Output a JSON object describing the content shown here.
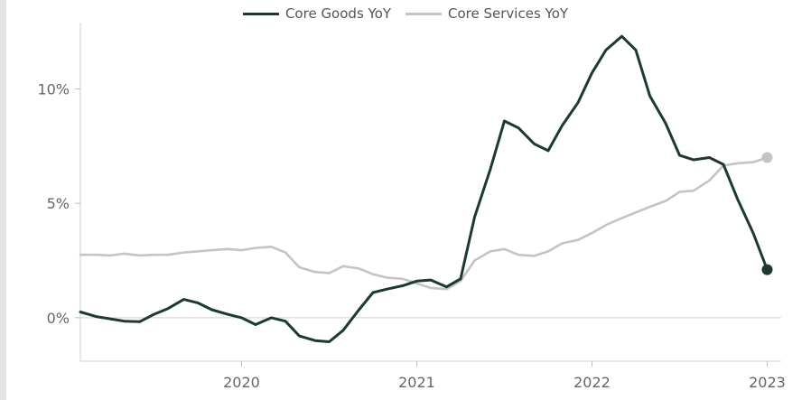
{
  "chart_data": {
    "type": "line",
    "legend": {
      "placement": "top-center"
    },
    "xlim": [
      2019.08,
      2023.08
    ],
    "ylim": [
      -1.9,
      12.9
    ],
    "x_ticks": [
      {
        "value": 2020,
        "label": "2020"
      },
      {
        "value": 2021,
        "label": "2021"
      },
      {
        "value": 2022,
        "label": "2022"
      },
      {
        "value": 2023,
        "label": "2023"
      }
    ],
    "y_ticks": [
      {
        "value": 0,
        "label": "0%"
      },
      {
        "value": 5,
        "label": "5%"
      },
      {
        "value": 10,
        "label": "10%"
      }
    ],
    "grid": "zero line only",
    "series": [
      {
        "name": "Core Goods YoY",
        "color": "#1c3a2e",
        "end_marker": true,
        "points": [
          [
            2019.08,
            0.25
          ],
          [
            2019.17,
            0.05
          ],
          [
            2019.25,
            -0.05
          ],
          [
            2019.33,
            -0.15
          ],
          [
            2019.42,
            -0.17
          ],
          [
            2019.5,
            0.15
          ],
          [
            2019.58,
            0.4
          ],
          [
            2019.67,
            0.8
          ],
          [
            2019.75,
            0.65
          ],
          [
            2019.83,
            0.35
          ],
          [
            2019.92,
            0.15
          ],
          [
            2020.0,
            0.0
          ],
          [
            2020.08,
            -0.3
          ],
          [
            2020.17,
            0.0
          ],
          [
            2020.25,
            -0.15
          ],
          [
            2020.33,
            -0.8
          ],
          [
            2020.42,
            -1.0
          ],
          [
            2020.5,
            -1.05
          ],
          [
            2020.58,
            -0.55
          ],
          [
            2020.67,
            0.35
          ],
          [
            2020.75,
            1.1
          ],
          [
            2020.83,
            1.25
          ],
          [
            2020.92,
            1.4
          ],
          [
            2021.0,
            1.6
          ],
          [
            2021.08,
            1.65
          ],
          [
            2021.17,
            1.35
          ],
          [
            2021.25,
            1.7
          ],
          [
            2021.33,
            4.4
          ],
          [
            2021.42,
            6.5
          ],
          [
            2021.5,
            8.6
          ],
          [
            2021.58,
            8.3
          ],
          [
            2021.67,
            7.6
          ],
          [
            2021.75,
            7.3
          ],
          [
            2021.83,
            8.4
          ],
          [
            2021.92,
            9.4
          ],
          [
            2022.0,
            10.7
          ],
          [
            2022.08,
            11.7
          ],
          [
            2022.17,
            12.3
          ],
          [
            2022.25,
            11.7
          ],
          [
            2022.33,
            9.7
          ],
          [
            2022.42,
            8.5
          ],
          [
            2022.5,
            7.1
          ],
          [
            2022.58,
            6.9
          ],
          [
            2022.67,
            7.0
          ],
          [
            2022.75,
            6.7
          ],
          [
            2022.83,
            5.2
          ],
          [
            2022.92,
            3.7
          ],
          [
            2023.0,
            2.1
          ]
        ]
      },
      {
        "name": "Core Services YoY",
        "color": "#c4c4c4",
        "end_marker": true,
        "points": [
          [
            2019.08,
            2.75
          ],
          [
            2019.17,
            2.75
          ],
          [
            2019.25,
            2.72
          ],
          [
            2019.33,
            2.8
          ],
          [
            2019.42,
            2.72
          ],
          [
            2019.5,
            2.75
          ],
          [
            2019.58,
            2.75
          ],
          [
            2019.67,
            2.85
          ],
          [
            2019.75,
            2.9
          ],
          [
            2019.83,
            2.95
          ],
          [
            2019.92,
            3.0
          ],
          [
            2020.0,
            2.95
          ],
          [
            2020.08,
            3.05
          ],
          [
            2020.17,
            3.1
          ],
          [
            2020.25,
            2.85
          ],
          [
            2020.33,
            2.2
          ],
          [
            2020.42,
            2.0
          ],
          [
            2020.5,
            1.95
          ],
          [
            2020.58,
            2.25
          ],
          [
            2020.67,
            2.15
          ],
          [
            2020.75,
            1.9
          ],
          [
            2020.83,
            1.75
          ],
          [
            2020.92,
            1.7
          ],
          [
            2021.0,
            1.5
          ],
          [
            2021.08,
            1.3
          ],
          [
            2021.17,
            1.25
          ],
          [
            2021.25,
            1.6
          ],
          [
            2021.33,
            2.5
          ],
          [
            2021.42,
            2.9
          ],
          [
            2021.5,
            3.0
          ],
          [
            2021.58,
            2.75
          ],
          [
            2021.67,
            2.7
          ],
          [
            2021.75,
            2.9
          ],
          [
            2021.83,
            3.25
          ],
          [
            2021.92,
            3.4
          ],
          [
            2022.0,
            3.7
          ],
          [
            2022.08,
            4.05
          ],
          [
            2022.17,
            4.35
          ],
          [
            2022.25,
            4.6
          ],
          [
            2022.33,
            4.85
          ],
          [
            2022.42,
            5.1
          ],
          [
            2022.5,
            5.5
          ],
          [
            2022.58,
            5.55
          ],
          [
            2022.67,
            6.0
          ],
          [
            2022.75,
            6.65
          ],
          [
            2022.83,
            6.75
          ],
          [
            2022.92,
            6.8
          ],
          [
            2023.0,
            7.0
          ]
        ]
      }
    ]
  }
}
